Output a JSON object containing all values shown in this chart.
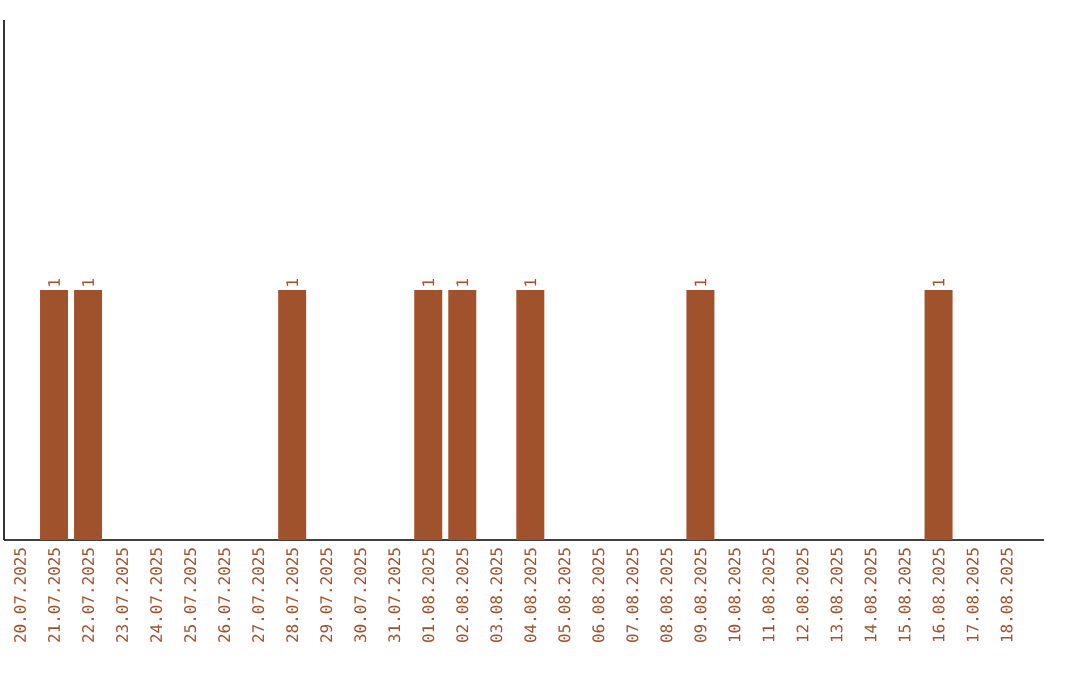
{
  "chart_data": {
    "type": "bar",
    "categories": [
      "20.07.2025",
      "21.07.2025",
      "22.07.2025",
      "23.07.2025",
      "24.07.2025",
      "25.07.2025",
      "26.07.2025",
      "27.07.2025",
      "28.07.2025",
      "29.07.2025",
      "30.07.2025",
      "31.07.2025",
      "01.08.2025",
      "02.08.2025",
      "03.08.2025",
      "04.08.2025",
      "05.08.2025",
      "06.08.2025",
      "07.08.2025",
      "08.08.2025",
      "09.08.2025",
      "10.08.2025",
      "11.08.2025",
      "12.08.2025",
      "13.08.2025",
      "14.08.2025",
      "15.08.2025",
      "16.08.2025",
      "17.08.2025",
      "18.08.2025"
    ],
    "values": [
      0,
      1,
      1,
      0,
      0,
      0,
      0,
      0,
      1,
      0,
      0,
      0,
      1,
      1,
      0,
      1,
      0,
      0,
      0,
      0,
      1,
      0,
      0,
      0,
      0,
      0,
      0,
      1,
      0,
      0
    ],
    "value_labels": [
      null,
      "1",
      "1",
      null,
      null,
      null,
      null,
      null,
      "1",
      null,
      null,
      null,
      "1",
      "1",
      null,
      "1",
      null,
      null,
      null,
      null,
      "1",
      null,
      null,
      null,
      null,
      null,
      null,
      "1",
      null,
      null
    ],
    "color": "#a0522d",
    "tick_labels": "x"
  }
}
